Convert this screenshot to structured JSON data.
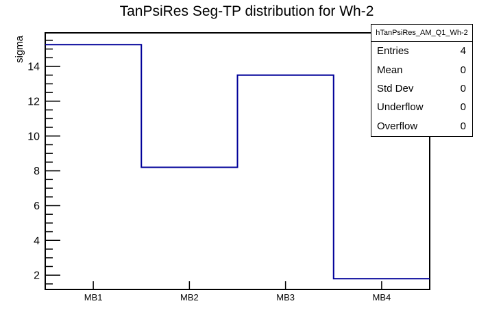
{
  "chart_data": {
    "type": "bar",
    "subtype": "root-step-histogram",
    "title": "TanPsiRes Seg-TP distribution for Wh-2",
    "xlabel": "",
    "ylabel": "sigma",
    "categories": [
      "MB1",
      "MB2",
      "MB3",
      "MB4"
    ],
    "values": [
      15.25,
      8.2,
      13.5,
      1.8
    ],
    "ylim": [
      1.18,
      15.93
    ],
    "y_major_ticks": [
      2,
      4,
      6,
      8,
      10,
      12,
      14
    ],
    "y_minor_step": 0.5,
    "grid": false,
    "legend": "none",
    "line_color": "#000099",
    "frame_color": "#000000",
    "background_color": "#ffffff"
  },
  "stats_box": {
    "header": "hTanPsiRes_AM_Q1_Wh-2",
    "rows": [
      {
        "label": "Entries",
        "value": "4"
      },
      {
        "label": "Mean",
        "value": "0"
      },
      {
        "label": "Std Dev",
        "value": "0"
      },
      {
        "label": "Underflow",
        "value": "0"
      },
      {
        "label": "Overflow",
        "value": "0"
      }
    ]
  }
}
